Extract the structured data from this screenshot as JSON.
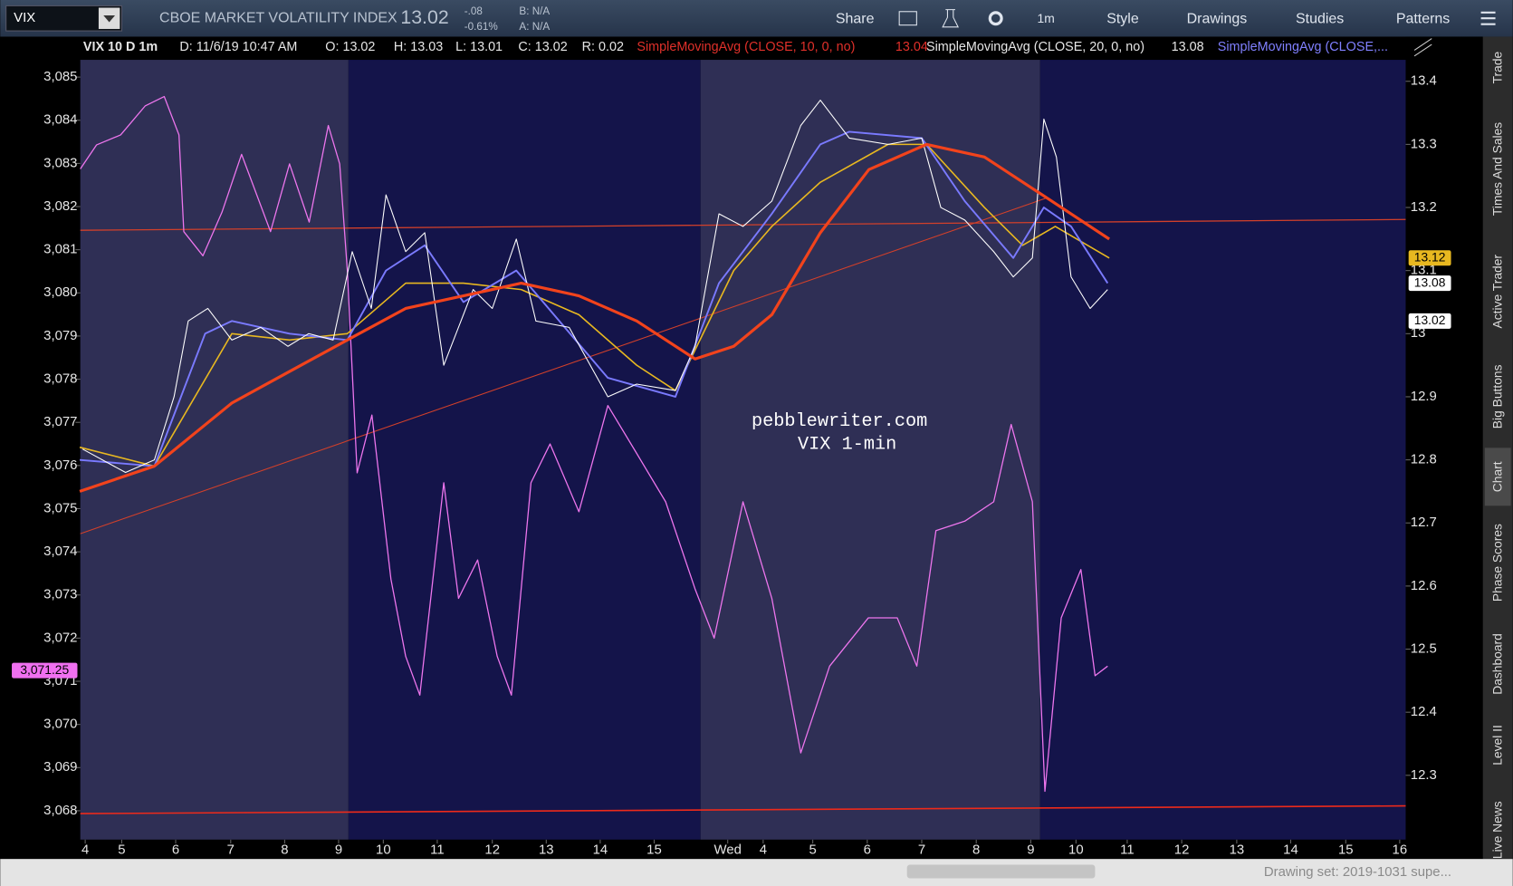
{
  "toolbar": {
    "symbol": "VIX",
    "title": "CBOE MARKET VOLATILITY INDEX",
    "last": "13.02",
    "change": "-.08",
    "change_pct": "-0.61%",
    "bid": "B: N/A",
    "ask": "A: N/A",
    "buttons": [
      "Share",
      "1m",
      "Style",
      "Drawings",
      "Studies",
      "Patterns"
    ]
  },
  "info_bar": {
    "study": "VIX 10 D 1m",
    "date": "D: 11/6/19 10:47 AM",
    "open": "O: 13.02",
    "high": "H: 13.03",
    "low": "L: 13.01",
    "close": "C: 13.02",
    "range": "R: 0.02",
    "sma1": "SimpleMovingAvg (CLOSE, 10, 0, no)",
    "sma1_value": "13.04",
    "sma2": "SimpleMovingAvg (CLOSE, 20, 0, no)",
    "sma2_value": "13.08",
    "sma3": "SimpleMovingAvg (CLOSE,..."
  },
  "chart_data": {
    "type": "line",
    "annotation": [
      "pebblewriter.com",
      "VIX 1-min"
    ],
    "xlim": [
      3.91,
      28.23
    ],
    "xticks": [
      {
        "value": 4,
        "label": "4"
      },
      {
        "value": 4.67,
        "label": "5"
      },
      {
        "value": 5.66,
        "label": "6"
      },
      {
        "value": 6.67,
        "label": "7"
      },
      {
        "value": 7.66,
        "label": "8"
      },
      {
        "value": 8.65,
        "label": "9"
      },
      {
        "value": 9.47,
        "label": "10"
      },
      {
        "value": 10.46,
        "label": "11"
      },
      {
        "value": 11.47,
        "label": "12"
      },
      {
        "value": 12.46,
        "label": "13"
      },
      {
        "value": 13.45,
        "label": "14"
      },
      {
        "value": 14.44,
        "label": "15"
      },
      {
        "value": 15.79,
        "label": "Wed"
      },
      {
        "value": 16.44,
        "label": "4"
      },
      {
        "value": 17.35,
        "label": "5"
      },
      {
        "value": 18.35,
        "label": "6"
      },
      {
        "value": 19.35,
        "label": "7"
      },
      {
        "value": 20.35,
        "label": "8"
      },
      {
        "value": 21.35,
        "label": "9"
      },
      {
        "value": 22.18,
        "label": "10"
      },
      {
        "value": 23.12,
        "label": "11"
      },
      {
        "value": 24.12,
        "label": "12"
      },
      {
        "value": 25.13,
        "label": "13"
      },
      {
        "value": 26.12,
        "label": "14"
      },
      {
        "value": 27.13,
        "label": "15"
      },
      {
        "value": 28.12,
        "label": "16"
      }
    ],
    "ylim": [
      3067.33,
      3085.4
    ],
    "yticks": [
      {
        "value": 3068,
        "label": "3,068"
      },
      {
        "value": 3069,
        "label": "3,069"
      },
      {
        "value": 3070,
        "label": "3,070"
      },
      {
        "value": 3071,
        "label": "3,071"
      },
      {
        "value": 3072,
        "label": "3,072"
      },
      {
        "value": 3073,
        "label": "3,073"
      },
      {
        "value": 3074,
        "label": "3,074"
      },
      {
        "value": 3075,
        "label": "3,075"
      },
      {
        "value": 3076,
        "label": "3,076"
      },
      {
        "value": 3077,
        "label": "3,077"
      },
      {
        "value": 3078,
        "label": "3,078"
      },
      {
        "value": 3079,
        "label": "3,079"
      },
      {
        "value": 3080,
        "label": "3,080"
      },
      {
        "value": 3081,
        "label": "3,081"
      },
      {
        "value": 3082,
        "label": "3,082"
      },
      {
        "value": 3083,
        "label": "3,083"
      },
      {
        "value": 3084,
        "label": "3,084"
      },
      {
        "value": 3085,
        "label": "3,085"
      }
    ],
    "y2lim": [
      12.198,
      13.434
    ],
    "y2ticks": [
      12.3,
      12.4,
      12.5,
      12.6,
      12.7,
      12.8,
      12.9,
      13,
      13.1,
      13.2,
      13.3,
      13.4
    ],
    "y_marker": {
      "value": 3071.25,
      "label": "3,071.25",
      "color": "#f070f0"
    },
    "y2_markers": [
      {
        "value": 13.12,
        "color": "#e8b820"
      },
      {
        "value": 13.08,
        "color": "#ffffff"
      },
      {
        "value": 13.02,
        "color": "#ffffff"
      }
    ],
    "series": [
      {
        "color": "#d2402a",
        "axis": "y",
        "line_width": 1.2,
        "x": [
          3.91,
          28.23
        ],
        "values": [
          3081.45,
          3081.7
        ]
      },
      {
        "color": "#ee76ee",
        "axis": "y",
        "line_width": 1.2,
        "x": [
          3.91,
          4.21,
          4.65,
          5.1,
          5.45,
          5.72,
          5.81,
          6.16,
          6.51,
          6.87,
          7.4,
          7.75,
          8.11,
          8.46,
          8.67,
          8.81,
          8.99,
          9.26,
          9.61,
          9.88,
          10.14,
          10.58,
          10.85,
          11.2,
          11.56,
          11.82,
          12.18,
          12.53,
          13.06,
          13.59,
          14.12,
          14.65,
          15.19,
          15.54,
          16.07,
          16.6,
          17.13,
          17.66,
          18.37,
          18.9,
          19.26,
          19.61,
          20.14,
          20.67,
          20.99,
          21.38,
          21.61,
          21.91,
          22.27,
          22.53,
          22.76
        ],
        "values": [
          3082.87,
          3083.43,
          3083.66,
          3084.33,
          3084.55,
          3083.66,
          3081.42,
          3080.86,
          3081.87,
          3083.21,
          3081.42,
          3082.99,
          3081.64,
          3083.88,
          3082.99,
          3080.53,
          3075.83,
          3077.17,
          3073.37,
          3071.58,
          3070.68,
          3075.6,
          3072.92,
          3073.81,
          3071.58,
          3070.68,
          3075.6,
          3076.5,
          3074.93,
          3077.39,
          3076.28,
          3075.16,
          3073.14,
          3072.0,
          3075.16,
          3072.92,
          3069.34,
          3071.35,
          3072.47,
          3072.47,
          3071.35,
          3074.49,
          3074.71,
          3075.16,
          3076.95,
          3075.16,
          3068.45,
          3072.47,
          3073.59,
          3071.13,
          3071.35
        ]
      },
      {
        "color": "#e8b820",
        "axis": "y2",
        "line_width": 1.5,
        "x": [
          3.9,
          5.27,
          6.69,
          7.75,
          8.81,
          9.88,
          10.94,
          12.0,
          13.06,
          14.12,
          14.83,
          15.9,
          16.6,
          17.49,
          18.73,
          19.44,
          20.5,
          21.2,
          21.8,
          22.79
        ],
        "values": [
          12.82,
          12.79,
          13.0,
          12.99,
          13.0,
          13.08,
          13.08,
          13.07,
          13.03,
          12.95,
          12.91,
          13.1,
          13.17,
          13.24,
          13.3,
          13.3,
          13.2,
          13.14,
          13.17,
          13.12
        ]
      },
      {
        "color": "#7a7aff",
        "axis": "y2",
        "line_width": 1.8,
        "x": [
          3.9,
          5.27,
          6.2,
          6.69,
          7.75,
          8.81,
          9.52,
          10.23,
          10.94,
          11.91,
          12.6,
          13.59,
          14.83,
          15.63,
          16.6,
          17.49,
          18.02,
          19.35,
          20.14,
          21.03,
          21.59,
          22.09,
          22.76
        ],
        "values": [
          12.8,
          12.79,
          13.0,
          13.02,
          13.0,
          12.99,
          13.1,
          13.14,
          13.05,
          13.1,
          13.03,
          12.93,
          12.9,
          13.08,
          13.19,
          13.3,
          13.32,
          13.31,
          13.21,
          13.12,
          13.2,
          13.17,
          13.08
        ]
      },
      {
        "color": "#ffffff",
        "axis": "y2",
        "line_width": 1,
        "x": [
          3.95,
          4.74,
          5.27,
          5.63,
          5.89,
          6.25,
          6.69,
          7.22,
          7.72,
          8.1,
          8.55,
          8.9,
          9.25,
          9.52,
          9.88,
          10.23,
          10.58,
          11.12,
          11.47,
          11.91,
          12.27,
          12.88,
          13.59,
          14.12,
          14.83,
          15.19,
          15.63,
          16.07,
          16.6,
          17.13,
          17.49,
          18.02,
          18.73,
          19.35,
          19.7,
          20.14,
          20.67,
          21.03,
          21.38,
          21.59,
          21.82,
          22.09,
          22.44,
          22.76
        ],
        "values": [
          12.817,
          12.78,
          12.8,
          12.9,
          13.02,
          13.04,
          12.99,
          13.01,
          12.98,
          13.0,
          12.99,
          13.13,
          13.04,
          13.22,
          13.13,
          13.16,
          12.95,
          13.07,
          13.04,
          13.15,
          13.02,
          13.01,
          12.9,
          12.92,
          12.91,
          12.98,
          13.19,
          13.17,
          13.21,
          13.33,
          13.37,
          13.31,
          13.3,
          13.31,
          13.2,
          13.18,
          13.13,
          13.09,
          13.12,
          13.34,
          13.28,
          13.09,
          13.04,
          13.07
        ]
      },
      {
        "color": "#f2431c",
        "axis": "y2",
        "line_width": 3,
        "x": [
          3.9,
          5.27,
          6.69,
          7.75,
          8.81,
          9.88,
          10.94,
          12.0,
          13.06,
          14.12,
          15.19,
          15.9,
          16.6,
          17.49,
          18.38,
          19.44,
          20.5,
          21.56,
          22.79
        ],
        "values": [
          12.75,
          12.79,
          12.89,
          12.94,
          12.99,
          13.04,
          13.06,
          13.08,
          13.06,
          13.02,
          12.96,
          12.98,
          13.03,
          13.16,
          13.26,
          13.3,
          13.28,
          13.22,
          13.15
        ]
      }
    ]
  },
  "sidebar": [
    "Trade",
    "Times And Sales",
    "Active Trader",
    "Big Buttons",
    "Chart",
    "Phase Scores",
    "Dashboard",
    "Level II",
    "Live News"
  ],
  "status": "Drawing set: 2019-1031 supe..."
}
